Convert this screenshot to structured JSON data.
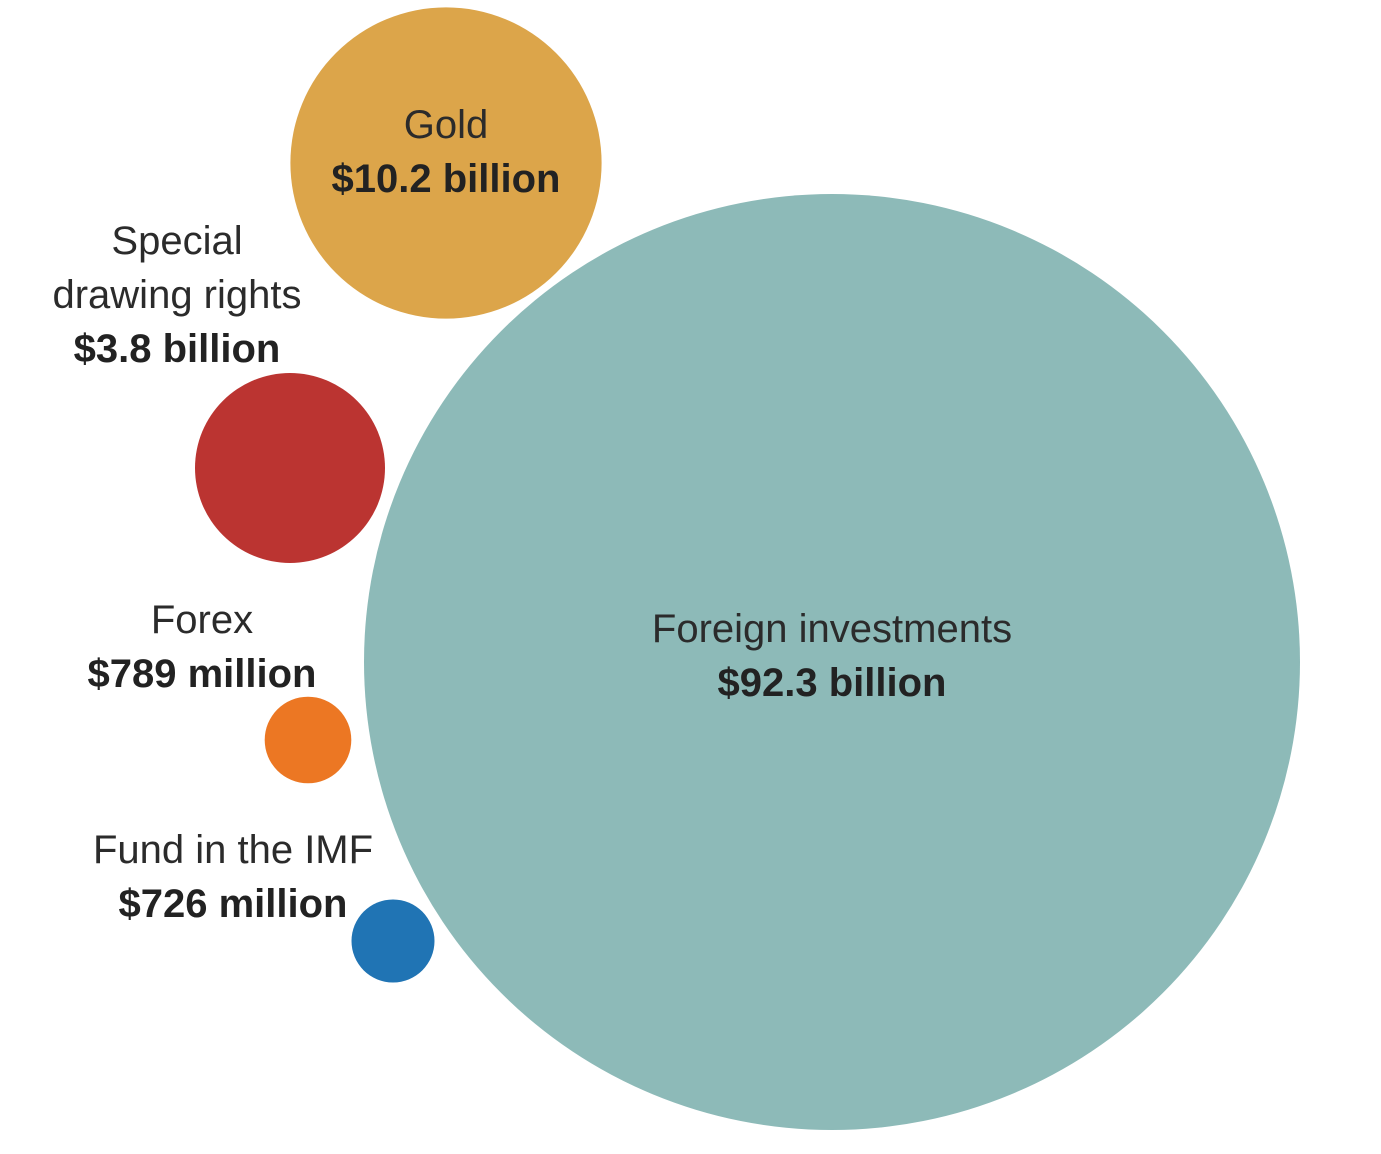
{
  "chart_data": {
    "type": "bubble",
    "title": "",
    "unit": "USD",
    "series": [
      {
        "key": "gold",
        "name": "Gold",
        "value": 10200000000,
        "value_label": "$10.2 billion",
        "color": "#dca54a"
      },
      {
        "key": "special_drawing_rights",
        "name": "Special drawing rights",
        "name_lines": [
          "Special",
          "drawing rights"
        ],
        "value": 3800000000,
        "value_label": "$3.8 billion",
        "color": "#bb3431"
      },
      {
        "key": "forex",
        "name": "Forex",
        "value": 789000000,
        "value_label": "$789 million",
        "color": "#ec7723"
      },
      {
        "key": "fund_in_imf",
        "name": "Fund in the IMF",
        "value": 726000000,
        "value_label": "$726 million",
        "color": "#2074b4"
      },
      {
        "key": "foreign_investments",
        "name": "Foreign investments",
        "value": 92300000000,
        "value_label": "$92.3 billion",
        "color": "#8dbab8"
      }
    ]
  }
}
